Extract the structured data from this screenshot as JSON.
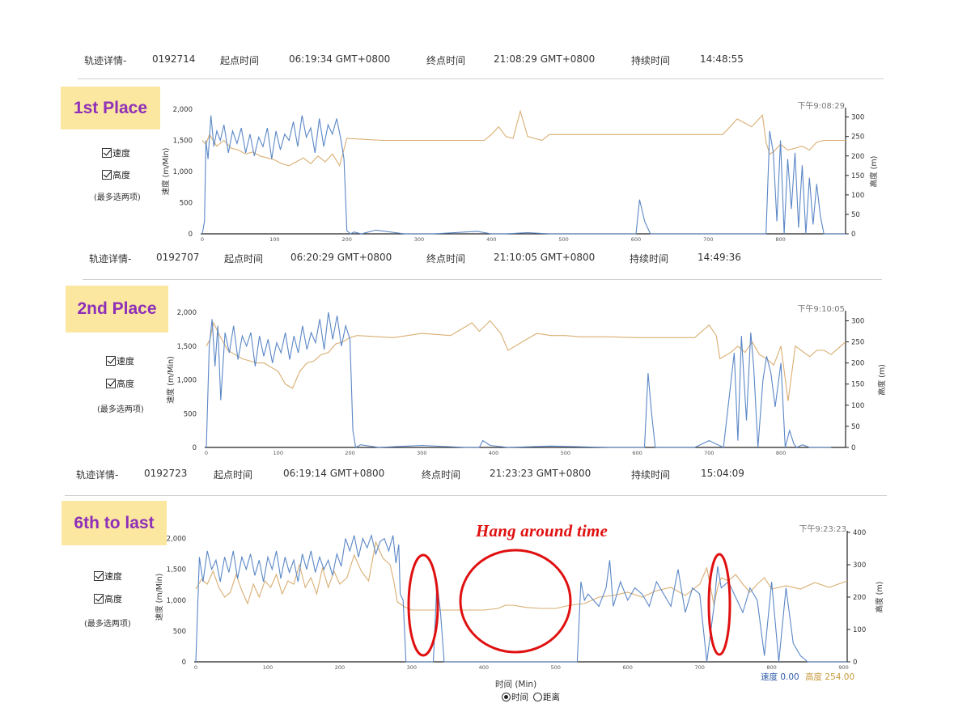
{
  "tracks": [
    {
      "header": {
        "label": "轨迹详情-",
        "id": "0192714",
        "start_label": "起点时间",
        "start": "06:19:34 GMT+0800",
        "end_label": "终点时间",
        "end": "21:08:29 GMT+0800",
        "duration_label": "持续时间",
        "duration": "14:48:55"
      },
      "place": "1st Place",
      "options": {
        "speed": "速度",
        "altitude": "高度",
        "note": "(最多选两项)"
      }
    },
    {
      "header": {
        "label": "轨迹详情-",
        "id": "0192707",
        "start_label": "起点时间",
        "start": "06:20:29 GMT+0800",
        "end_label": "终点时间",
        "end": "21:10:05 GMT+0800",
        "duration_label": "持续时间",
        "duration": "14:49:36"
      },
      "place": "2nd Place",
      "options": {
        "speed": "速度",
        "altitude": "高度",
        "note": "(最多选两项)"
      }
    },
    {
      "header": {
        "label": "轨迹详情-",
        "id": "0192723",
        "start_label": "起点时间",
        "start": "06:19:14 GMT+0800",
        "end_label": "终点时间",
        "end": "21:23:23 GMT+0800",
        "duration_label": "持续时间",
        "duration": "15:04:09"
      },
      "place": "6th to last",
      "options": {
        "speed": "速度",
        "altitude": "高度",
        "note": "(最多选两项)"
      }
    }
  ],
  "annotation": "Hang around time",
  "footer": {
    "legend_speed": "速度 0.00",
    "legend_altitude": "高度 254.00",
    "x_label": "时间 (Min)",
    "radio_time": "时间",
    "radio_distance": "距离"
  },
  "chart_data": [
    {
      "type": "line",
      "time_label": "下午9:08:29",
      "ylabel": "速度 (m/Min)",
      "y2label": "高度 (m)",
      "xlim": [
        0,
        890
      ],
      "ylim": [
        0,
        2000
      ],
      "y2lim": [
        0,
        320
      ],
      "xticks": [
        0,
        100,
        200,
        300,
        400,
        500,
        600,
        700,
        800
      ],
      "yticks": [
        0,
        500,
        1000,
        1500,
        2000
      ],
      "y2ticks": [
        0,
        50,
        100,
        150,
        200,
        250,
        300
      ],
      "series": [
        {
          "name": "速度",
          "color": "#5b87c6",
          "x": [
            0,
            3,
            5,
            8,
            12,
            16,
            20,
            25,
            30,
            36,
            42,
            48,
            54,
            60,
            66,
            72,
            78,
            84,
            90,
            96,
            102,
            108,
            114,
            120,
            126,
            132,
            138,
            144,
            150,
            156,
            162,
            168,
            174,
            180,
            186,
            192,
            196,
            200,
            205,
            210,
            220,
            240,
            280,
            320,
            380,
            400,
            420,
            450,
            480,
            500,
            540,
            560,
            600,
            605,
            612,
            620,
            660,
            700,
            740,
            760,
            775,
            780,
            785,
            790,
            795,
            800,
            805,
            810,
            815,
            820,
            825,
            830,
            835,
            840,
            845,
            850,
            855,
            860,
            870,
            890
          ],
          "y": [
            0,
            200,
            1500,
            1200,
            1900,
            1400,
            1650,
            1500,
            1750,
            1300,
            1650,
            1450,
            1700,
            1300,
            1600,
            1250,
            1550,
            1400,
            1700,
            1200,
            1650,
            1350,
            1600,
            1500,
            1800,
            1400,
            1900,
            1550,
            1700,
            1300,
            1850,
            1400,
            1750,
            1600,
            1850,
            1500,
            1200,
            50,
            0,
            30,
            0,
            60,
            0,
            0,
            40,
            0,
            0,
            20,
            0,
            0,
            0,
            0,
            0,
            550,
            200,
            0,
            0,
            0,
            0,
            0,
            0,
            0,
            1650,
            1300,
            200,
            1500,
            0,
            1200,
            400,
            1300,
            100,
            1100,
            0,
            900,
            150,
            800,
            300,
            0,
            0,
            0
          ]
        },
        {
          "name": "高度",
          "color": "#d9ae72",
          "x": [
            0,
            5,
            10,
            20,
            30,
            40,
            50,
            60,
            70,
            80,
            90,
            100,
            110,
            120,
            130,
            140,
            150,
            160,
            170,
            180,
            190,
            200,
            250,
            300,
            390,
            400,
            410,
            420,
            430,
            440,
            450,
            460,
            470,
            480,
            520,
            560,
            600,
            640,
            680,
            720,
            730,
            740,
            760,
            775,
            780,
            785,
            790,
            800,
            810,
            820,
            830,
            840,
            850,
            860,
            870,
            880,
            890
          ],
          "y": [
            240,
            230,
            255,
            225,
            240,
            220,
            215,
            205,
            210,
            200,
            195,
            190,
            180,
            175,
            185,
            195,
            180,
            200,
            185,
            205,
            175,
            245,
            240,
            240,
            240,
            255,
            275,
            250,
            245,
            315,
            250,
            245,
            240,
            255,
            255,
            255,
            255,
            255,
            255,
            255,
            275,
            295,
            275,
            305,
            235,
            205,
            210,
            230,
            215,
            220,
            225,
            215,
            235,
            240,
            240,
            240,
            240
          ]
        }
      ]
    },
    {
      "type": "line",
      "time_label": "下午9:10:05",
      "ylabel": "速度 (m/Min)",
      "y2label": "高度 (m)",
      "xlim": [
        0,
        890
      ],
      "ylim": [
        0,
        2000
      ],
      "y2lim": [
        0,
        320
      ],
      "xticks": [
        0,
        100,
        200,
        300,
        400,
        500,
        600,
        700,
        800
      ],
      "yticks": [
        0,
        500,
        1000,
        1500,
        2000
      ],
      "y2ticks": [
        0,
        50,
        100,
        150,
        200,
        250,
        300
      ],
      "series": [
        {
          "name": "速度",
          "color": "#5b87c6",
          "x": [
            0,
            4,
            8,
            12,
            16,
            20,
            26,
            32,
            38,
            44,
            50,
            56,
            62,
            68,
            74,
            80,
            86,
            92,
            98,
            104,
            110,
            116,
            122,
            128,
            134,
            140,
            146,
            152,
            158,
            164,
            170,
            176,
            182,
            188,
            194,
            200,
            204,
            208,
            215,
            240,
            300,
            360,
            380,
            385,
            395,
            420,
            480,
            560,
            610,
            615,
            620,
            625,
            640,
            680,
            700,
            720,
            735,
            740,
            745,
            752,
            758,
            762,
            768,
            775,
            780,
            786,
            792,
            800,
            806,
            812,
            818,
            822,
            830,
            840,
            850,
            870
          ],
          "y": [
            0,
            1500,
            1900,
            1200,
            1800,
            700,
            1700,
            1400,
            1800,
            1300,
            1650,
            1500,
            1700,
            1200,
            1650,
            1350,
            1600,
            1250,
            1550,
            1400,
            1700,
            1300,
            1650,
            1400,
            1800,
            1450,
            1700,
            1550,
            1900,
            1450,
            2000,
            1600,
            1950,
            1500,
            1800,
            1600,
            250,
            0,
            40,
            0,
            30,
            0,
            0,
            100,
            30,
            0,
            20,
            0,
            0,
            1100,
            500,
            0,
            0,
            0,
            100,
            0,
            1400,
            100,
            1650,
            400,
            1700,
            1200,
            0,
            1000,
            1350,
            1100,
            600,
            1250,
            0,
            250,
            50,
            0,
            40,
            0,
            0,
            0
          ]
        },
        {
          "name": "高度",
          "color": "#d9ae72",
          "x": [
            0,
            5,
            10,
            20,
            30,
            40,
            50,
            60,
            70,
            80,
            90,
            100,
            110,
            120,
            130,
            140,
            150,
            160,
            170,
            180,
            190,
            200,
            210,
            260,
            300,
            340,
            370,
            380,
            395,
            400,
            410,
            420,
            440,
            460,
            480,
            500,
            520,
            560,
            600,
            640,
            680,
            700,
            710,
            715,
            730,
            740,
            750,
            760,
            770,
            780,
            790,
            800,
            810,
            820,
            840,
            850,
            860,
            870,
            880,
            890
          ],
          "y": [
            240,
            255,
            295,
            260,
            230,
            220,
            210,
            205,
            200,
            200,
            190,
            180,
            150,
            140,
            180,
            200,
            205,
            220,
            225,
            245,
            250,
            260,
            265,
            260,
            270,
            265,
            295,
            275,
            300,
            290,
            270,
            230,
            250,
            270,
            265,
            265,
            262,
            262,
            260,
            260,
            260,
            290,
            265,
            210,
            225,
            240,
            225,
            250,
            220,
            210,
            195,
            240,
            110,
            240,
            215,
            230,
            230,
            220,
            235,
            250
          ]
        }
      ]
    },
    {
      "type": "line",
      "time_label": "下午9:23:23",
      "ylabel": "速度 (m/Min)",
      "y2label": "高度 (m)",
      "xlim": [
        0,
        905
      ],
      "ylim": [
        0,
        2100
      ],
      "y2lim": [
        0,
        400
      ],
      "xticks": [
        0,
        100,
        200,
        300,
        400,
        500,
        600,
        700,
        800,
        900
      ],
      "yticks": [
        0,
        500,
        1000,
        1500,
        2000
      ],
      "y2ticks": [
        0,
        100,
        200,
        300,
        400
      ],
      "series": [
        {
          "name": "速度",
          "color": "#5b87c6",
          "x": [
            0,
            5,
            10,
            16,
            22,
            28,
            34,
            40,
            46,
            52,
            58,
            64,
            70,
            76,
            82,
            88,
            94,
            100,
            106,
            112,
            118,
            124,
            130,
            136,
            142,
            148,
            154,
            160,
            166,
            172,
            178,
            184,
            190,
            196,
            202,
            208,
            214,
            220,
            226,
            232,
            238,
            244,
            250,
            256,
            262,
            268,
            274,
            278,
            282,
            284,
            288,
            292,
            300,
            330,
            335,
            340,
            345,
            350,
            360,
            400,
            450,
            520,
            530,
            535,
            540,
            545,
            560,
            570,
            575,
            580,
            585,
            590,
            600,
            610,
            620,
            630,
            640,
            650,
            660,
            670,
            680,
            690,
            700,
            710,
            720,
            725,
            730,
            740,
            750,
            760,
            770,
            780,
            790,
            800,
            810,
            820,
            830,
            840,
            850,
            860,
            880,
            905
          ],
          "y": [
            0,
            1700,
            1300,
            1800,
            1500,
            1650,
            1300,
            1700,
            1450,
            1800,
            1350,
            1700,
            1500,
            1750,
            1400,
            1650,
            1300,
            1700,
            1500,
            1800,
            1350,
            1700,
            1450,
            1650,
            1300,
            1750,
            1500,
            1800,
            1450,
            1700,
            1500,
            1650,
            1400,
            1750,
            1550,
            2000,
            1800,
            2050,
            1700,
            2000,
            1850,
            2050,
            1750,
            1950,
            2000,
            1800,
            2050,
            1600,
            1900,
            1100,
            1000,
            0,
            0,
            0,
            1300,
            800,
            0,
            0,
            0,
            0,
            0,
            0,
            0,
            1300,
            1000,
            1100,
            900,
            1200,
            1650,
            900,
            1100,
            1300,
            1000,
            1200,
            1100,
            900,
            1300,
            1100,
            900,
            1500,
            800,
            1200,
            1100,
            0,
            900,
            1550,
            1200,
            1300,
            1050,
            800,
            1200,
            1000,
            100,
            1300,
            0,
            1200,
            300,
            100,
            0,
            0,
            0,
            0
          ]
        },
        {
          "name": "高度",
          "color": "#d9ae72",
          "x": [
            0,
            8,
            16,
            24,
            32,
            40,
            48,
            56,
            64,
            72,
            80,
            88,
            96,
            104,
            112,
            120,
            128,
            136,
            144,
            152,
            160,
            168,
            176,
            184,
            192,
            200,
            210,
            220,
            230,
            240,
            250,
            260,
            270,
            275,
            280,
            290,
            300,
            320,
            340,
            360,
            380,
            400,
            420,
            430,
            440,
            460,
            480,
            500,
            520,
            540,
            560,
            580,
            600,
            620,
            640,
            660,
            680,
            700,
            710,
            720,
            725,
            730,
            740,
            750,
            760,
            770,
            780,
            790,
            800,
            820,
            840,
            860,
            880,
            905
          ],
          "y": [
            225,
            255,
            240,
            280,
            230,
            200,
            215,
            270,
            220,
            180,
            240,
            200,
            250,
            230,
            270,
            210,
            250,
            240,
            300,
            230,
            260,
            210,
            290,
            230,
            280,
            240,
            260,
            330,
            280,
            250,
            370,
            320,
            300,
            250,
            185,
            170,
            160,
            160,
            160,
            160,
            160,
            160,
            165,
            175,
            175,
            168,
            165,
            165,
            175,
            180,
            200,
            205,
            215,
            200,
            220,
            230,
            205,
            240,
            290,
            175,
            230,
            260,
            250,
            270,
            240,
            215,
            240,
            260,
            225,
            235,
            225,
            245,
            230,
            250
          ]
        }
      ]
    }
  ]
}
